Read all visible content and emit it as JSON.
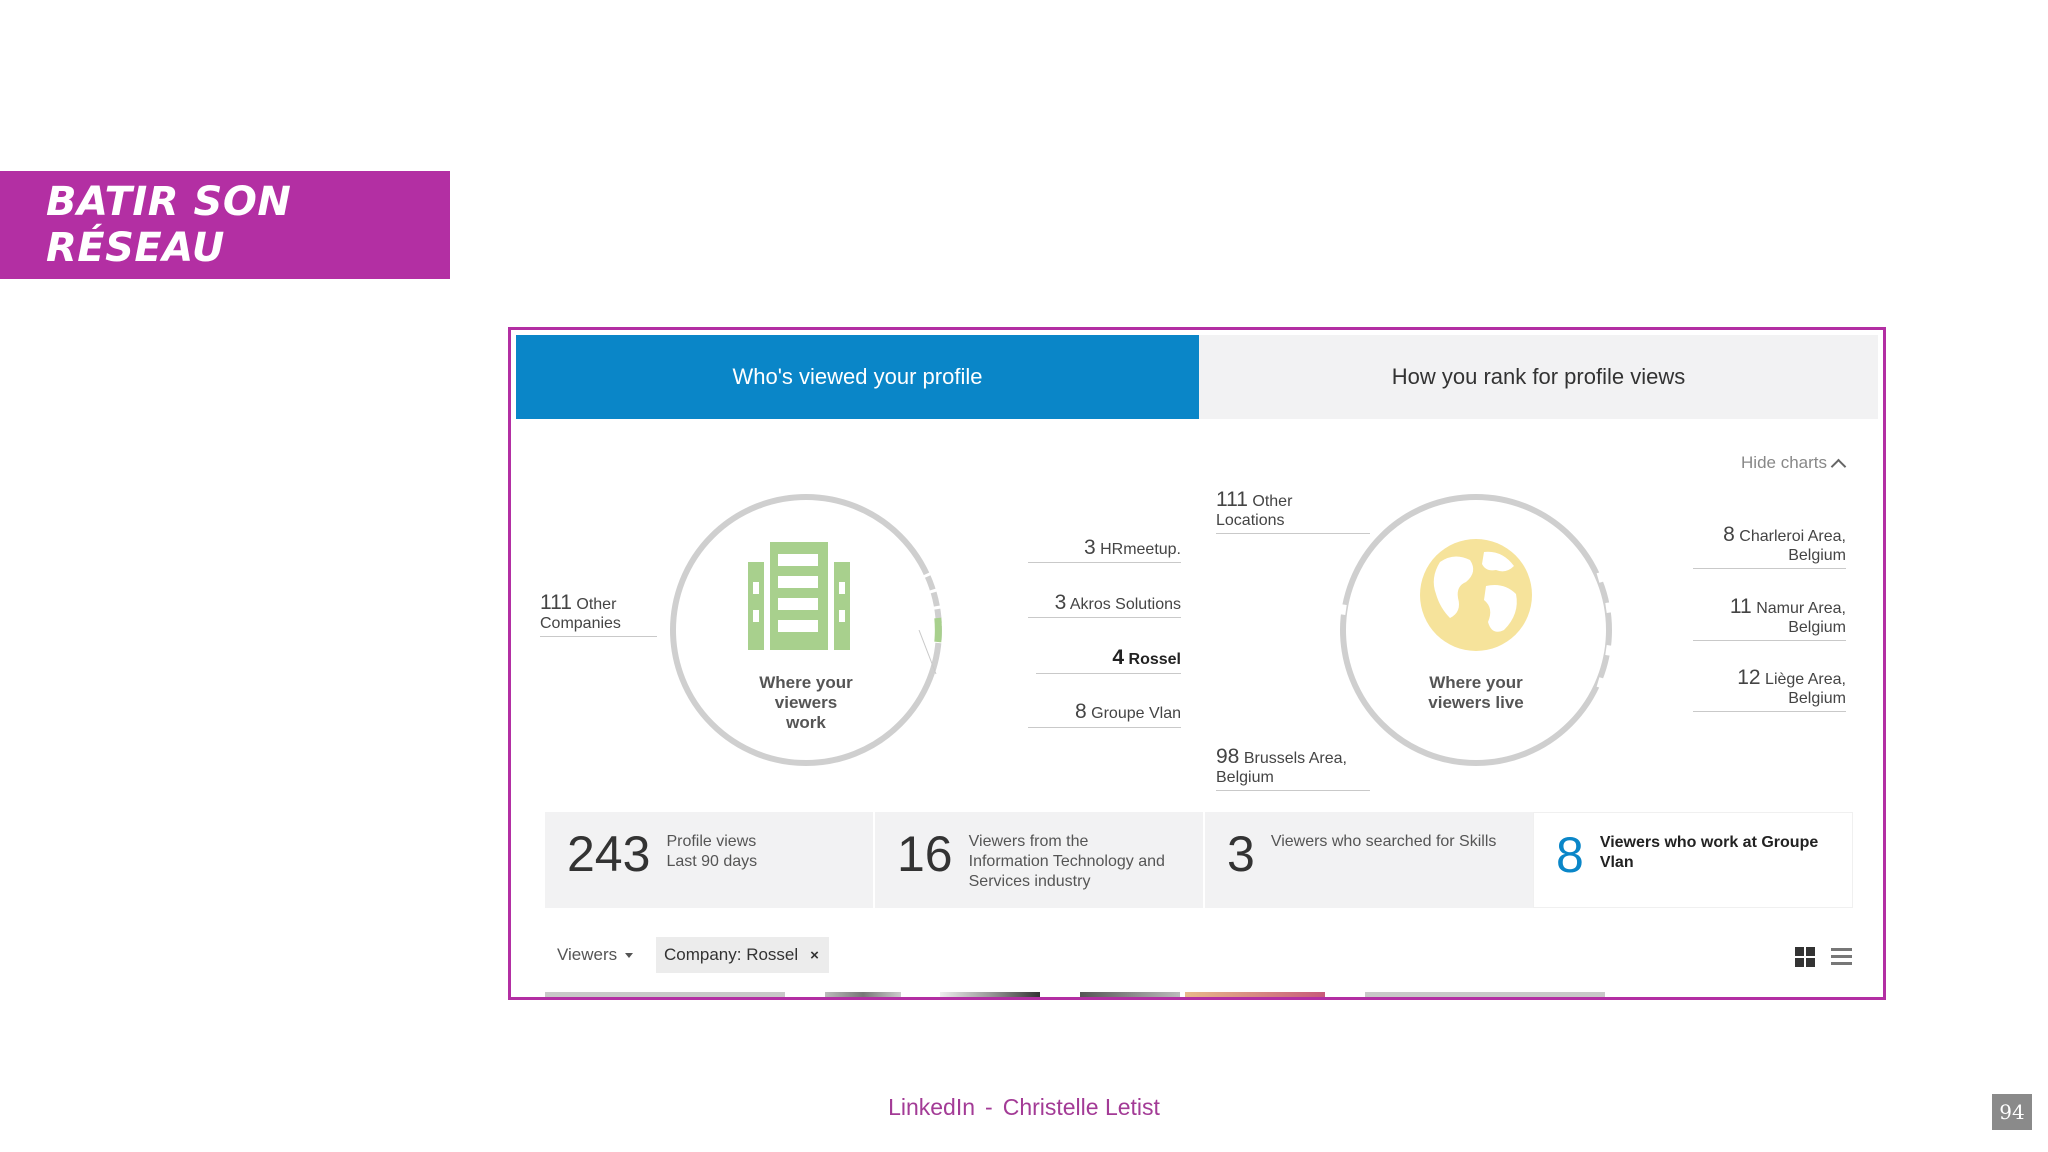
{
  "slide": {
    "title": "BATIR SON RÉSEAU",
    "footer_left": "LinkedIn",
    "footer_sep": "-",
    "footer_right": "Christelle Letist",
    "page_number": "94"
  },
  "colors": {
    "accent": "#b32fa3",
    "linkedin_blue": "#0a86c8",
    "work_green": "#a8d08d",
    "globe_yellow": "#f6e39b"
  },
  "tabs": [
    {
      "label": "Who's viewed your profile",
      "active": true
    },
    {
      "label": "How you rank for profile views",
      "active": false
    }
  ],
  "hide_charts": "Hide charts",
  "work_chart": {
    "center_label_1": "Where your",
    "center_label_2": "viewers work",
    "icon": "building-icon",
    "left": {
      "count": "111",
      "label_1": "Other",
      "label_2": "Companies"
    },
    "items": [
      {
        "count": "3",
        "label": "HRmeetup."
      },
      {
        "count": "3",
        "label": "Akros Solutions"
      },
      {
        "count": "4",
        "label": "Rossel",
        "selected": true
      },
      {
        "count": "8",
        "label": "Groupe Vlan"
      }
    ]
  },
  "location_chart": {
    "center_label_1": "Where your",
    "center_label_2": "viewers live",
    "icon": "globe-icon",
    "left_top": {
      "count": "111",
      "label_1": "Other",
      "label_2": "Locations"
    },
    "left_bottom": {
      "count": "98",
      "label_1": "Brussels Area,",
      "label_2": "Belgium"
    },
    "items": [
      {
        "count": "8",
        "label_1": "Charleroi Area,",
        "label_2": "Belgium"
      },
      {
        "count": "11",
        "label_1": "Namur Area,",
        "label_2": "Belgium"
      },
      {
        "count": "12",
        "label_1": "Liège Area,",
        "label_2": "Belgium"
      }
    ]
  },
  "stats": [
    {
      "value": "243",
      "line_1": "Profile views",
      "line_2": "Last 90 days"
    },
    {
      "value": "16",
      "line_1": "Viewers from the",
      "line_2": "Information Technology and",
      "line_3": "Services industry"
    },
    {
      "value": "3",
      "line_1": "Viewers who searched for Skills"
    },
    {
      "value": "8",
      "line_1": "Viewers who work at Groupe",
      "line_2": "Vlan"
    }
  ],
  "filters": {
    "viewers_label": "Viewers",
    "chip_label": "Company: Rossel",
    "chip_close": "×"
  }
}
